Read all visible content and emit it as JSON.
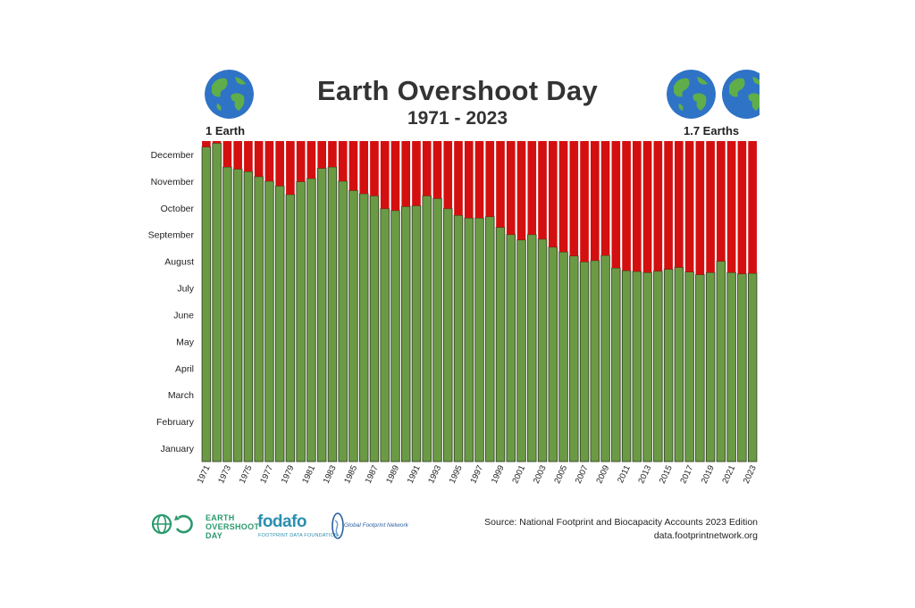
{
  "header": {
    "title": "Earth Overshoot Day",
    "subtitle": "1971 - 2023",
    "left_label": "1 Earth",
    "right_label": "1.7 Earths"
  },
  "footer": {
    "source_line1": "Source: National Footprint and Biocapacity Accounts 2023 Edition",
    "source_line2": "data.footprintnetwork.org",
    "logo_eod_lines": [
      "EARTH",
      "OVERSHOOT",
      "DAY"
    ],
    "logo_fodafo": "fodafo",
    "logo_fodafo_sub": "FOOTPRINT DATA FOUNDATION",
    "logo_gfn": "Global Footprint Network"
  },
  "icons": [
    "globe-icon-left",
    "globe-icon-right-1",
    "globe-icon-right-2",
    "eod-logo-icon",
    "gfn-logo-icon"
  ],
  "colors": {
    "green": "#6b9a45",
    "red": "#d40f0f",
    "bar_outline": "#2d3a1f"
  },
  "chart_data": {
    "type": "bar",
    "stacked": true,
    "x_tick_labels": [
      "1971",
      "1973",
      "1975",
      "1977",
      "1979",
      "1981",
      "1983",
      "1985",
      "1987",
      "1989",
      "1991",
      "1993",
      "1995",
      "1997",
      "1999",
      "2001",
      "2003",
      "2005",
      "2007",
      "2009",
      "2011",
      "2013",
      "2015",
      "2017",
      "2019",
      "2021",
      "2023"
    ],
    "y_tick_labels": [
      "January",
      "February",
      "March",
      "April",
      "May",
      "June",
      "July",
      "August",
      "September",
      "October",
      "November",
      "December"
    ],
    "ylim_months": [
      0,
      12
    ],
    "grid": false,
    "legend": "none",
    "categories": [
      "1971",
      "1972",
      "1973",
      "1974",
      "1975",
      "1976",
      "1977",
      "1978",
      "1979",
      "1980",
      "1981",
      "1982",
      "1983",
      "1984",
      "1985",
      "1986",
      "1987",
      "1988",
      "1989",
      "1990",
      "1991",
      "1992",
      "1993",
      "1994",
      "1995",
      "1996",
      "1997",
      "1998",
      "1999",
      "2000",
      "2001",
      "2002",
      "2003",
      "2004",
      "2005",
      "2006",
      "2007",
      "2008",
      "2009",
      "2010",
      "2011",
      "2012",
      "2013",
      "2014",
      "2015",
      "2016",
      "2017",
      "2018",
      "2019",
      "2020",
      "2021",
      "2022",
      "2023"
    ],
    "series": [
      {
        "name": "",
        "color": "#6b9a45",
        "values": [
          11.78,
          11.92,
          11.03,
          10.95,
          10.86,
          10.67,
          10.5,
          10.32,
          10.0,
          10.48,
          10.6,
          10.98,
          11.03,
          10.5,
          10.15,
          10.03,
          9.95,
          9.47,
          9.4,
          9.55,
          9.58,
          9.95,
          9.85,
          9.47,
          9.22,
          9.12,
          9.12,
          9.17,
          8.77,
          8.5,
          8.3,
          8.5,
          8.33,
          8.03,
          7.85,
          7.7,
          7.48,
          7.53,
          7.72,
          7.25,
          7.15,
          7.12,
          7.08,
          7.13,
          7.2,
          7.27,
          7.1,
          7.0,
          7.08,
          7.5,
          7.08,
          7.03,
          7.05
        ]
      },
      {
        "name": "",
        "color": "#d40f0f",
        "values": [
          0.22,
          0.08,
          0.97,
          1.05,
          1.14,
          1.33,
          1.5,
          1.68,
          2.0,
          1.52,
          1.4,
          1.02,
          0.97,
          1.5,
          1.85,
          1.97,
          2.05,
          2.53,
          2.6,
          2.45,
          2.42,
          2.05,
          2.15,
          2.53,
          2.78,
          2.88,
          2.88,
          2.83,
          3.23,
          3.5,
          3.7,
          3.5,
          3.67,
          3.97,
          4.15,
          4.3,
          4.52,
          4.47,
          4.28,
          4.75,
          4.85,
          4.88,
          4.92,
          4.87,
          4.8,
          4.73,
          4.9,
          5.0,
          4.92,
          4.5,
          4.92,
          4.97,
          4.95
        ]
      }
    ]
  }
}
